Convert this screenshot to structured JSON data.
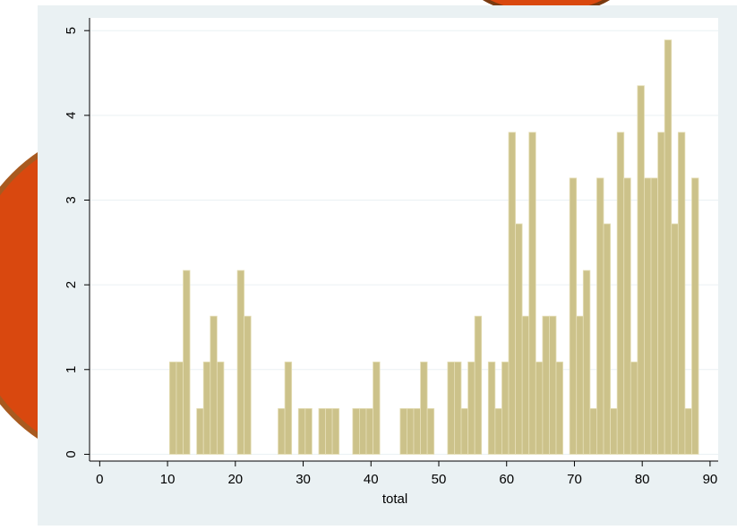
{
  "chart_data": {
    "type": "histogram",
    "xlabel": "total",
    "bins": [
      10.3,
      11.3,
      12.3,
      13.3,
      14.3,
      15.3,
      16.3,
      17.3,
      18.3,
      19.3,
      20.3,
      21.3,
      22.3,
      23.3,
      24.3,
      25.3,
      26.3,
      27.3,
      28.3,
      29.3,
      30.3,
      31.3,
      32.3,
      33.3,
      34.3,
      35.3,
      36.3,
      37.3,
      38.3,
      39.3,
      40.3,
      41.3,
      42.3,
      43.3,
      44.3,
      45.3,
      46.3,
      47.3,
      48.3,
      49.3,
      50.3,
      51.3,
      52.3,
      53.3,
      54.3,
      55.3,
      56.3,
      57.3,
      58.3,
      59.3,
      60.3,
      61.3,
      62.3,
      63.3,
      64.3,
      65.3,
      66.3,
      67.3,
      68.3,
      69.3,
      70.3,
      71.3,
      72.3,
      73.3,
      74.3,
      75.3,
      76.3,
      77.3,
      78.3,
      79.3,
      80.3,
      81.3,
      82.3,
      83.3,
      84.3,
      85.3,
      86.3,
      87.3,
      88.3
    ],
    "values": [
      1.09,
      1.09,
      2.17,
      0,
      0.54,
      1.09,
      1.63,
      1.09,
      0,
      0,
      2.17,
      1.63,
      0,
      0,
      0,
      0,
      0.54,
      1.09,
      0,
      0.54,
      0.54,
      0,
      0.54,
      0.54,
      0.54,
      0,
      0,
      0.54,
      0.54,
      0.54,
      1.09,
      0,
      0,
      0,
      0.54,
      0.54,
      0.54,
      1.09,
      0.54,
      0,
      0,
      1.09,
      1.09,
      0.54,
      1.09,
      1.63,
      0,
      1.09,
      0.54,
      1.09,
      3.8,
      2.72,
      1.63,
      3.8,
      1.09,
      1.63,
      1.63,
      1.09,
      0,
      3.26,
      1.63,
      2.17,
      0.54,
      3.26,
      2.72,
      0.54,
      3.8,
      3.26,
      1.09,
      4.35,
      3.26,
      3.26,
      3.8,
      4.89,
      2.72,
      3.8,
      0.54,
      3.26
    ],
    "color": "#ccc28a",
    "xlim": [
      -1.5,
      91.2
    ],
    "ylim": [
      -0.08,
      5.15
    ],
    "xticks": [
      0,
      10,
      20,
      30,
      40,
      50,
      60,
      70,
      80,
      90
    ],
    "yticks": [
      0,
      1,
      2,
      3,
      4,
      5
    ],
    "grid": true
  }
}
